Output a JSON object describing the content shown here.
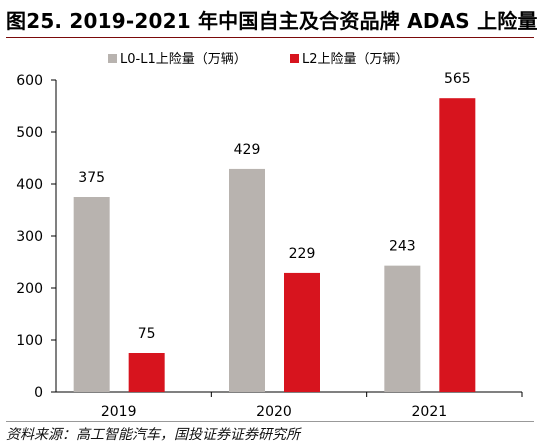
{
  "title": "图25. 2019-2021 年中国自主及合资品牌 ADAS 上险量",
  "source": "资料来源：高工智能汽车，国投证券证券研究所",
  "chart_data": {
    "type": "bar",
    "categories": [
      "2019",
      "2020",
      "2021"
    ],
    "series": [
      {
        "name": "L0-L1上险量（万辆）",
        "color": "#b8b3af",
        "values": [
          375,
          429,
          243
        ]
      },
      {
        "name": "L2上险量（万辆）",
        "color": "#d7141e",
        "values": [
          75,
          229,
          565
        ]
      }
    ],
    "ylim": [
      0,
      600
    ],
    "yticks": [
      "0",
      "100",
      "200",
      "300",
      "400",
      "500",
      "600"
    ],
    "data_labels": [
      [
        "375",
        "429",
        "243"
      ],
      [
        "75",
        "229",
        "565"
      ]
    ],
    "xlabel": "",
    "ylabel": "",
    "grid": false,
    "legend": "top-center"
  }
}
